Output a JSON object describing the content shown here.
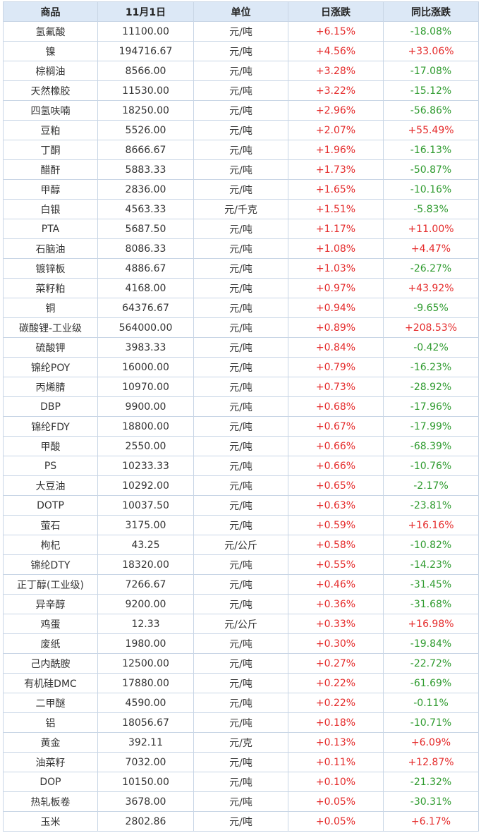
{
  "headers": [
    "商品",
    "11月1日",
    "单位",
    "日涨跌",
    "同比涨跌"
  ],
  "rows": [
    [
      "氢氟酸",
      "11100.00",
      "元/吨",
      "+6.15%",
      "-18.08%"
    ],
    [
      "镍",
      "194716.67",
      "元/吨",
      "+4.56%",
      "+33.06%"
    ],
    [
      "棕榈油",
      "8566.00",
      "元/吨",
      "+3.28%",
      "-17.08%"
    ],
    [
      "天然橡胶",
      "11530.00",
      "元/吨",
      "+3.22%",
      "-15.12%"
    ],
    [
      "四氢呋喃",
      "18250.00",
      "元/吨",
      "+2.96%",
      "-56.86%"
    ],
    [
      "豆粕",
      "5526.00",
      "元/吨",
      "+2.07%",
      "+55.49%"
    ],
    [
      "丁酮",
      "8666.67",
      "元/吨",
      "+1.96%",
      "-16.13%"
    ],
    [
      "醋酐",
      "5883.33",
      "元/吨",
      "+1.73%",
      "-50.87%"
    ],
    [
      "甲醇",
      "2836.00",
      "元/吨",
      "+1.65%",
      "-10.16%"
    ],
    [
      "白银",
      "4563.33",
      "元/千克",
      "+1.51%",
      "-5.83%"
    ],
    [
      "PTA",
      "5687.50",
      "元/吨",
      "+1.17%",
      "+11.00%"
    ],
    [
      "石脑油",
      "8086.33",
      "元/吨",
      "+1.08%",
      "+4.47%"
    ],
    [
      "镀锌板",
      "4886.67",
      "元/吨",
      "+1.03%",
      "-26.27%"
    ],
    [
      "菜籽粕",
      "4168.00",
      "元/吨",
      "+0.97%",
      "+43.92%"
    ],
    [
      "铜",
      "64376.67",
      "元/吨",
      "+0.94%",
      "-9.65%"
    ],
    [
      "碳酸锂-工业级",
      "564000.00",
      "元/吨",
      "+0.89%",
      "+208.53%"
    ],
    [
      "硫酸钾",
      "3983.33",
      "元/吨",
      "+0.84%",
      "-0.42%"
    ],
    [
      "锦纶POY",
      "16000.00",
      "元/吨",
      "+0.79%",
      "-16.23%"
    ],
    [
      "丙烯腈",
      "10970.00",
      "元/吨",
      "+0.73%",
      "-28.92%"
    ],
    [
      "DBP",
      "9900.00",
      "元/吨",
      "+0.68%",
      "-17.96%"
    ],
    [
      "锦纶FDY",
      "18800.00",
      "元/吨",
      "+0.67%",
      "-17.99%"
    ],
    [
      "甲酸",
      "2550.00",
      "元/吨",
      "+0.66%",
      "-68.39%"
    ],
    [
      "PS",
      "10233.33",
      "元/吨",
      "+0.66%",
      "-10.76%"
    ],
    [
      "大豆油",
      "10292.00",
      "元/吨",
      "+0.65%",
      "-2.17%"
    ],
    [
      "DOTP",
      "10037.50",
      "元/吨",
      "+0.63%",
      "-23.81%"
    ],
    [
      "萤石",
      "3175.00",
      "元/吨",
      "+0.59%",
      "+16.16%"
    ],
    [
      "枸杞",
      "43.25",
      "元/公斤",
      "+0.58%",
      "-10.82%"
    ],
    [
      "锦纶DTY",
      "18320.00",
      "元/吨",
      "+0.55%",
      "-14.23%"
    ],
    [
      "正丁醇(工业级)",
      "7266.67",
      "元/吨",
      "+0.46%",
      "-31.45%"
    ],
    [
      "异辛醇",
      "9200.00",
      "元/吨",
      "+0.36%",
      "-31.68%"
    ],
    [
      "鸡蛋",
      "12.33",
      "元/公斤",
      "+0.33%",
      "+16.98%"
    ],
    [
      "废纸",
      "1980.00",
      "元/吨",
      "+0.30%",
      "-19.84%"
    ],
    [
      "己内酰胺",
      "12500.00",
      "元/吨",
      "+0.27%",
      "-22.72%"
    ],
    [
      "有机硅DMC",
      "17880.00",
      "元/吨",
      "+0.22%",
      "-61.69%"
    ],
    [
      "二甲醚",
      "4590.00",
      "元/吨",
      "+0.22%",
      "-0.11%"
    ],
    [
      "铝",
      "18056.67",
      "元/吨",
      "+0.18%",
      "-10.71%"
    ],
    [
      "黄金",
      "392.11",
      "元/克",
      "+0.13%",
      "+6.09%"
    ],
    [
      "油菜籽",
      "7032.00",
      "元/吨",
      "+0.11%",
      "+12.87%"
    ],
    [
      "DOP",
      "10150.00",
      "元/吨",
      "+0.10%",
      "-21.32%"
    ],
    [
      "热轧板卷",
      "3678.00",
      "元/吨",
      "+0.05%",
      "-30.31%"
    ],
    [
      "玉米",
      "2802.86",
      "元/吨",
      "+0.05%",
      "+6.17%"
    ]
  ],
  "colors": {
    "up": "#e52b2b",
    "down": "#2f9b2f",
    "header_bg": "#dce8f6",
    "border": "#c9d6e6"
  }
}
